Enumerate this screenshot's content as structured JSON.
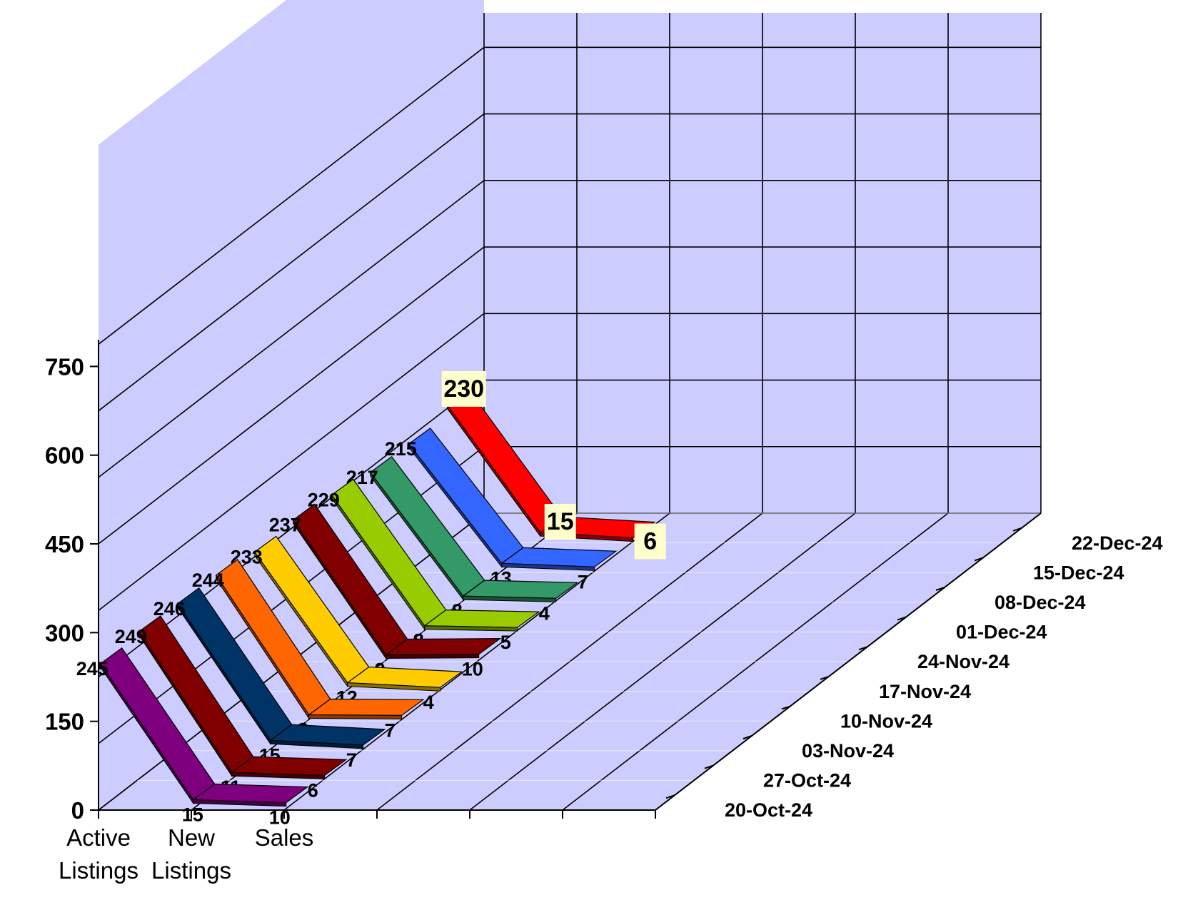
{
  "chart_data": {
    "type": "line",
    "subtype": "3d-ribbon",
    "title": "",
    "categories": [
      "Active Listings",
      "New Listings",
      "Sales"
    ],
    "category_lines": [
      [
        "Active",
        "Listings"
      ],
      [
        "New",
        "Listings"
      ],
      [
        "Sales"
      ]
    ],
    "ylim": [
      0,
      750
    ],
    "yticks": [
      0,
      150,
      300,
      450,
      600,
      750
    ],
    "grid": true,
    "series": [
      {
        "name": "20-Oct-24",
        "color": "#7f007f",
        "values": [
          245,
          15,
          10
        ]
      },
      {
        "name": "27-Oct-24",
        "color": "#800000",
        "values": [
          249,
          11,
          6
        ]
      },
      {
        "name": "03-Nov-24",
        "color": "#003366",
        "values": [
          246,
          15,
          7
        ]
      },
      {
        "name": "10-Nov-24",
        "color": "#ff6600",
        "values": [
          244,
          8,
          7
        ]
      },
      {
        "name": "17-Nov-24",
        "color": "#ffcc00",
        "values": [
          233,
          12,
          4
        ]
      },
      {
        "name": "24-Nov-24",
        "color": "#800000",
        "values": [
          237,
          9,
          10
        ]
      },
      {
        "name": "01-Dec-24",
        "color": "#99cc00",
        "values": [
          229,
          8,
          5
        ]
      },
      {
        "name": "08-Dec-24",
        "color": "#339966",
        "values": [
          217,
          8,
          4
        ]
      },
      {
        "name": "15-Dec-24",
        "color": "#3366ff",
        "values": [
          215,
          13,
          7
        ]
      },
      {
        "name": "22-Dec-24",
        "color": "#ff0000",
        "values": [
          230,
          15,
          6
        ],
        "highlight": true
      }
    ],
    "colors": {
      "wall": "#ccccff",
      "gridline": "#000000",
      "highlight_label_bg": "#ffffcc"
    }
  }
}
